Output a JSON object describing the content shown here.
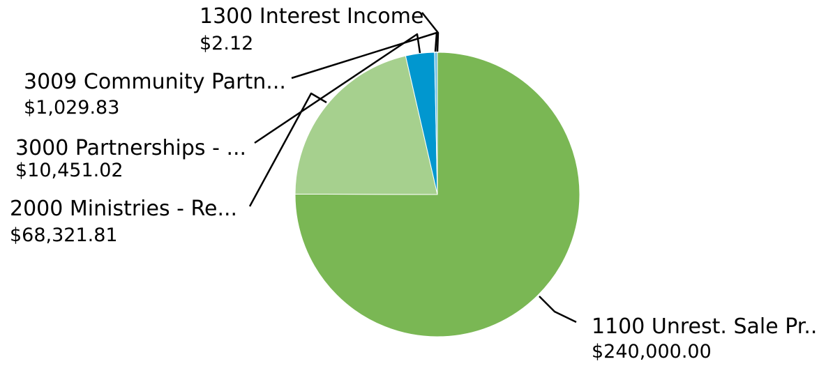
{
  "chart_data": {
    "type": "pie",
    "title": "",
    "slices": [
      {
        "label": "1100 Unrest. Sale Pr...",
        "value": 240000.0,
        "value_label": "$240,000.00",
        "color": "#7ab754"
      },
      {
        "label": "2000 Ministries - Re...",
        "value": 68321.81,
        "value_label": "$68,321.81",
        "color": "#a6d08e"
      },
      {
        "label": "3000 Partnerships - ...",
        "value": 10451.02,
        "value_label": "$10,451.02",
        "color": "#0197cf"
      },
      {
        "label": "3009 Community Partn...",
        "value": 1029.83,
        "value_label": "$1,029.83",
        "color": "#6fbfe4"
      },
      {
        "label": "1300 Interest Income",
        "value": 2.12,
        "value_label": "$2.12",
        "color": "#1f4e79"
      }
    ]
  }
}
